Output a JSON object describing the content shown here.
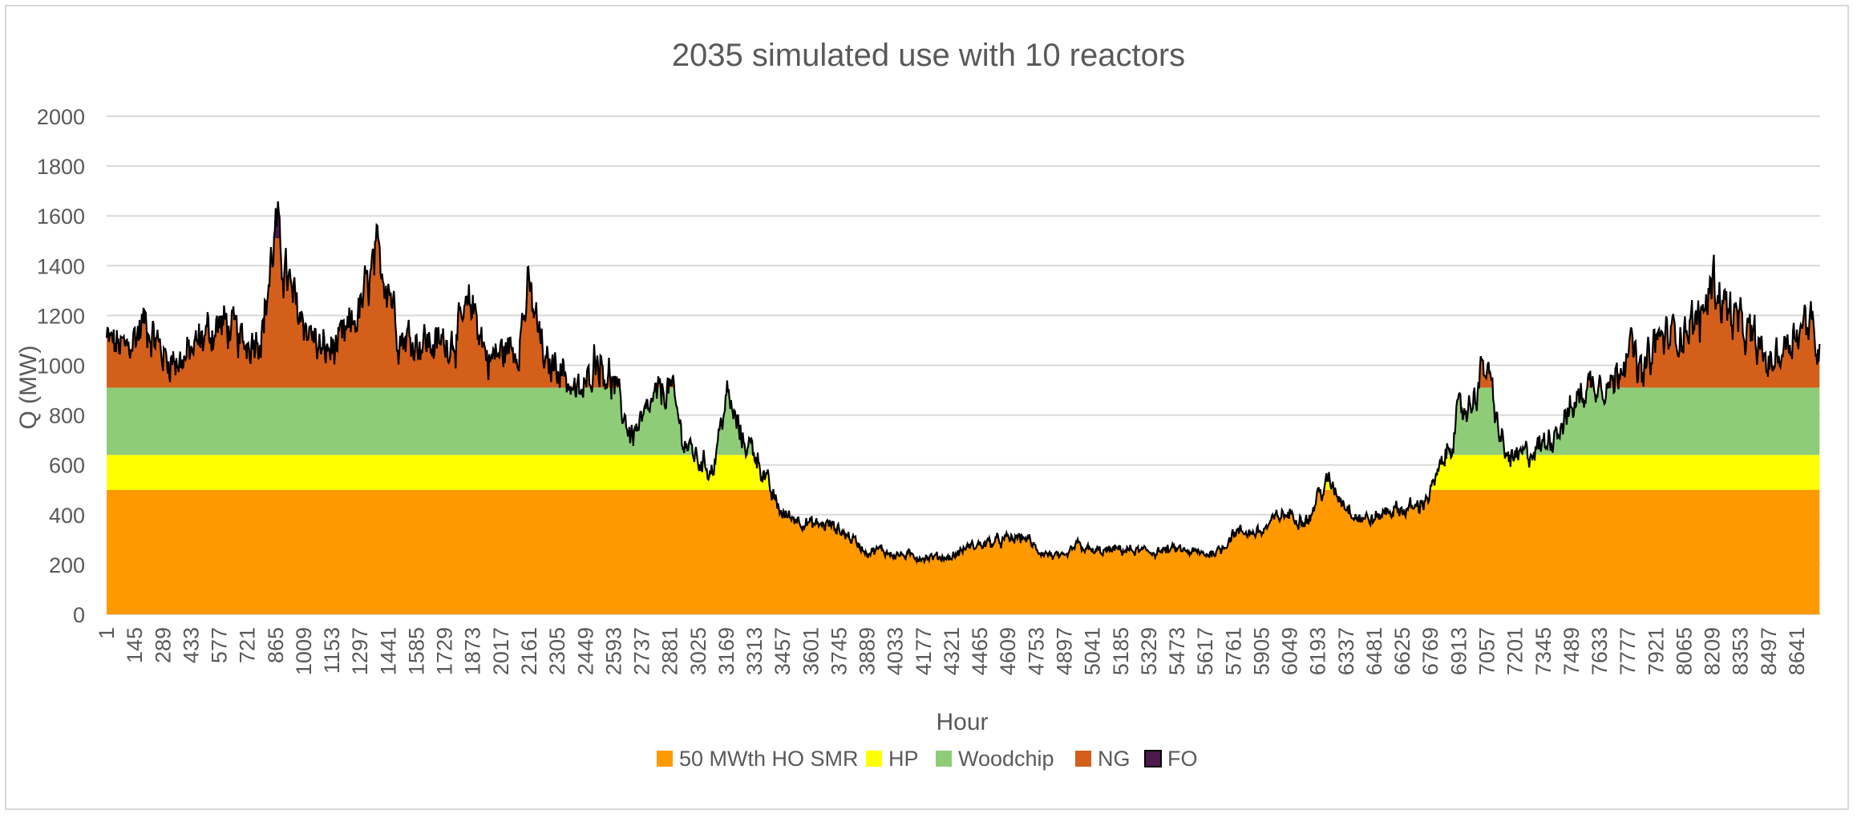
{
  "chart_data": {
    "type": "area",
    "title": "2035 simulated use with 10 reactors",
    "xlabel": "Hour",
    "ylabel": "Q (MW)",
    "ylim": [
      0,
      2000
    ],
    "yticks": [
      0,
      200,
      400,
      600,
      800,
      1000,
      1200,
      1400,
      1600,
      1800,
      2000
    ],
    "xticks": [
      1,
      145,
      289,
      433,
      577,
      721,
      865,
      1009,
      1153,
      1297,
      1441,
      1585,
      1729,
      1873,
      2017,
      2161,
      2305,
      2449,
      2593,
      2737,
      2881,
      3025,
      3169,
      3313,
      3457,
      3601,
      3745,
      3889,
      4033,
      4177,
      4321,
      4465,
      4609,
      4753,
      4897,
      5041,
      5185,
      5329,
      5473,
      5617,
      5761,
      5905,
      6049,
      6193,
      6337,
      6481,
      6625,
      6769,
      6913,
      7057,
      7201,
      7345,
      7489,
      7633,
      7777,
      7921,
      8065,
      8209,
      8353,
      8497,
      8641
    ],
    "xlim": [
      1,
      8760
    ],
    "grid": true,
    "legend_position": "bottom",
    "stack_order": [
      "50 MWth HO SMR",
      "HP",
      "Woodchip",
      "NG",
      "FO"
    ],
    "series": [
      {
        "name": "50 MWth HO SMR",
        "color": "#ff9900",
        "capacity": 500
      },
      {
        "name": "HP",
        "color": "#ffff00",
        "capacity": 140
      },
      {
        "name": "Woodchip",
        "color": "#8fcc78",
        "capacity": 270
      },
      {
        "name": "NG",
        "color": "#d35f1b",
        "capacity": 600
      },
      {
        "name": "FO",
        "color": "#4d1a4d",
        "capacity": 600
      }
    ],
    "total_demand_profile": {
      "x": [
        1,
        100,
        200,
        300,
        400,
        500,
        600,
        700,
        800,
        865,
        950,
        1009,
        1100,
        1200,
        1297,
        1380,
        1441,
        1500,
        1600,
        1700,
        1800,
        1873,
        1950,
        2017,
        2100,
        2161,
        2250,
        2305,
        2400,
        2449,
        2500,
        2593,
        2680,
        2737,
        2800,
        2881,
        2950,
        3025,
        3100,
        3169,
        3250,
        3313,
        3400,
        3457,
        3550,
        3601,
        3700,
        3745,
        3820,
        3889,
        3950,
        4033,
        4177,
        4321,
        4400,
        4465,
        4609,
        4700,
        4753,
        4897,
        4960,
        5041,
        5185,
        5329,
        5473,
        5617,
        5700,
        5761,
        5905,
        6000,
        6049,
        6150,
        6193,
        6250,
        6337,
        6400,
        6481,
        6550,
        6625,
        6700,
        6769,
        6850,
        6913,
        6980,
        7020,
        7057,
        7100,
        7150,
        7201,
        7345,
        7489,
        7550,
        7633,
        7700,
        7777,
        7850,
        7921,
        8000,
        8065,
        8150,
        8209,
        8270,
        8353,
        8420,
        8497,
        8550,
        8641,
        8700,
        8760
      ],
      "y": [
        1100,
        1060,
        1180,
        1030,
        1020,
        1120,
        1170,
        1080,
        1150,
        1550,
        1260,
        1180,
        1050,
        1080,
        1220,
        1420,
        1350,
        1120,
        1100,
        1080,
        1130,
        1250,
        1020,
        1050,
        1080,
        1300,
        980,
        1020,
        880,
        900,
        1050,
        920,
        720,
        760,
        860,
        920,
        700,
        620,
        580,
        880,
        700,
        660,
        480,
        400,
        380,
        360,
        360,
        340,
        300,
        250,
        260,
        240,
        230,
        230,
        270,
        280,
        300,
        310,
        260,
        220,
        280,
        250,
        260,
        250,
        260,
        240,
        260,
        330,
        330,
        400,
        400,
        380,
        480,
        530,
        440,
        390,
        380,
        420,
        420,
        430,
        490,
        640,
        800,
        850,
        950,
        1000,
        800,
        640,
        620,
        680,
        820,
        900,
        950,
        920,
        1100,
        950,
        1100,
        1120,
        1150,
        1180,
        1350,
        1250,
        1150,
        1100,
        1000,
        1050,
        1150,
        1180,
        1050
      ]
    }
  }
}
